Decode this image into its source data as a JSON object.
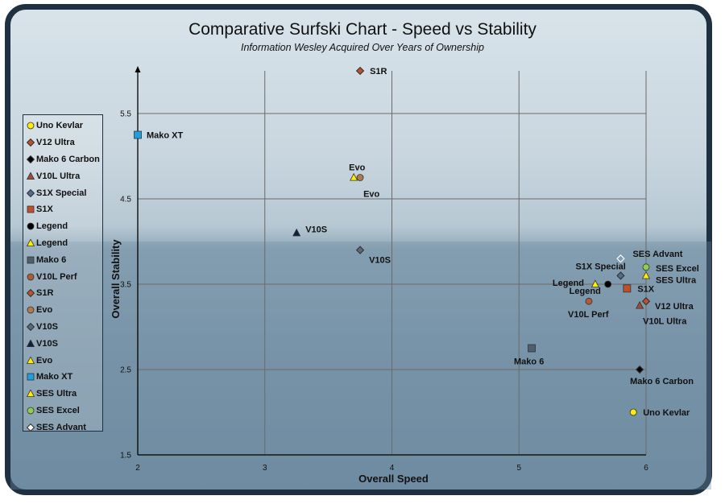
{
  "chart_data": {
    "type": "scatter",
    "title": "Comparative Surfski Chart - Speed vs Stability",
    "subtitle": "Information Wesley Acquired Over Years of Ownership",
    "xlabel": "Overall Speed",
    "ylabel": "Overall Stability",
    "xlim": [
      2,
      6
    ],
    "ylim": [
      1.5,
      6
    ],
    "x_ticks": [
      "2",
      "3",
      "4",
      "5",
      "6"
    ],
    "y_ticks": [
      "1.5",
      "2.5",
      "3.5",
      "4.5",
      "5.5"
    ],
    "grid": true,
    "legend_position": "left",
    "series": [
      {
        "name": "Uno Kevlar",
        "label": "Uno Kevlar",
        "x": 5.9,
        "y": 2.0,
        "marker": "circle",
        "color": "#ffee00"
      },
      {
        "name": "V12 Ultra",
        "label": "V12 Ultra",
        "x": 6.0,
        "y": 3.3,
        "marker": "diamond",
        "color": "#c0502c"
      },
      {
        "name": "Mako 6 Carbon",
        "label": "Mako 6 Carbon",
        "x": 5.95,
        "y": 2.5,
        "marker": "diamond",
        "color": "#000000"
      },
      {
        "name": "V10L Ultra",
        "label": "V10L Ultra",
        "x": 5.95,
        "y": 3.25,
        "marker": "triangle",
        "color": "#a04a3a"
      },
      {
        "name": "S1X Special",
        "label": "S1X Special",
        "x": 5.8,
        "y": 3.6,
        "marker": "diamond",
        "color": "#4e6e8e"
      },
      {
        "name": "S1X",
        "label": "S1X",
        "x": 5.85,
        "y": 3.45,
        "marker": "square",
        "color": "#c0502c"
      },
      {
        "name": "Legend",
        "label": "Legend",
        "x": 5.7,
        "y": 3.5,
        "marker": "circle",
        "color": "#000000"
      },
      {
        "name": "Legend",
        "label": "Legend",
        "x": 5.6,
        "y": 3.5,
        "marker": "triangle",
        "color": "#ffee00"
      },
      {
        "name": "Mako 6",
        "label": "Mako 6",
        "x": 5.1,
        "y": 2.75,
        "marker": "square",
        "color": "#4e5e6e"
      },
      {
        "name": "V10L Perf",
        "label": "V10L Perf",
        "x": 5.55,
        "y": 3.3,
        "marker": "circle",
        "color": "#b05a3a"
      },
      {
        "name": "S1R",
        "label": "S1R",
        "x": 3.75,
        "y": 6.0,
        "marker": "diamond",
        "color": "#c0502c"
      },
      {
        "name": "Evo",
        "label": "Evo",
        "x": 3.75,
        "y": 4.75,
        "marker": "circle",
        "color": "#b07a4a"
      },
      {
        "name": "V10S",
        "label": "V10S",
        "x": 3.75,
        "y": 3.9,
        "marker": "diamond",
        "color": "#5a6a7a"
      },
      {
        "name": "V10S",
        "label": "V10S",
        "x": 3.25,
        "y": 4.1,
        "marker": "triangle",
        "color": "#102040"
      },
      {
        "name": "Evo",
        "label": "Evo",
        "x": 3.7,
        "y": 4.75,
        "marker": "triangle",
        "color": "#ffee00"
      },
      {
        "name": "Mako XT",
        "label": "Mako XT",
        "x": 2.0,
        "y": 5.25,
        "marker": "square",
        "color": "#1ea0e0"
      },
      {
        "name": "SES Ultra",
        "label": "SES Ultra",
        "x": 6.0,
        "y": 3.6,
        "marker": "triangle",
        "color": "#ffee00"
      },
      {
        "name": "SES Excel",
        "label": "SES Excel",
        "x": 6.0,
        "y": 3.7,
        "marker": "circle",
        "color": "#8ecf4a"
      },
      {
        "name": "SES Advant",
        "label": "SES Advant",
        "x": 5.8,
        "y": 3.8,
        "marker": "diamond-open",
        "color": "#ffffff"
      }
    ]
  }
}
